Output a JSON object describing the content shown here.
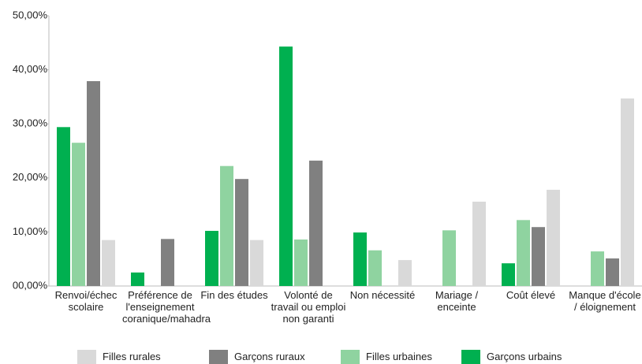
{
  "chart_data": {
    "type": "bar",
    "categories": [
      "Renvoi/échec scolaire",
      "Préférence de l'enseignement coranique/mahadra",
      "Fin des études",
      "Volonté de travail ou emploi non garanti",
      "Non nécessité",
      "Mariage / enceinte",
      "Coût élevé",
      "Manque d'école / éloignement"
    ],
    "series": [
      {
        "name": "Garçons urbains",
        "color": "#00b050",
        "values": [
          29.4,
          2.5,
          10.2,
          44.3,
          9.9,
          0,
          4.2,
          0
        ]
      },
      {
        "name": "Filles urbaines",
        "color": "#8fd3a0",
        "values": [
          26.5,
          0,
          22.2,
          8.6,
          6.6,
          10.3,
          12.2,
          6.4
        ]
      },
      {
        "name": "Garçons ruraux",
        "color": "#808080",
        "values": [
          37.9,
          8.7,
          19.8,
          23.2,
          0,
          0,
          10.9,
          5.1
        ]
      },
      {
        "name": "Filles rurales",
        "color": "#d9d9d9",
        "values": [
          8.5,
          0,
          8.5,
          0,
          4.8,
          15.6,
          17.8,
          34.7
        ]
      }
    ],
    "legend_order": [
      3,
      2,
      1,
      0
    ],
    "ylim": [
      0,
      50
    ],
    "yticks": [
      {
        "value": 0,
        "label": "00,00%"
      },
      {
        "value": 10,
        "label": "10,00%"
      },
      {
        "value": 20,
        "label": "20,00%"
      },
      {
        "value": 30,
        "label": "30,00%"
      },
      {
        "value": 40,
        "label": "40,00%"
      },
      {
        "value": 50,
        "label": "50,00%"
      }
    ]
  }
}
